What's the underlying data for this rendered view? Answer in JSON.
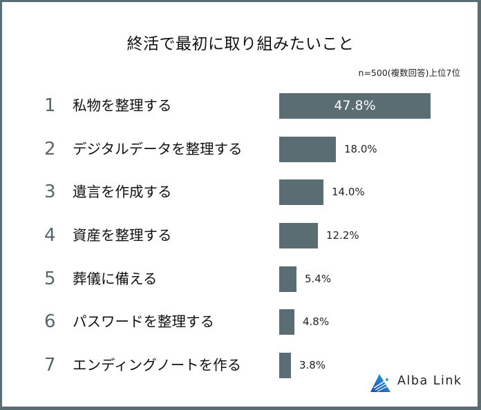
{
  "chart": {
    "title": "終活で最初に取り組みたいこと",
    "note": "n=500(複数回答)上位7位",
    "bar_color": "#5a6d72",
    "frame_color": "#5a6d72",
    "rows": [
      {
        "rank": "1",
        "label": "私物を整理する",
        "value_label": "47.8%"
      },
      {
        "rank": "2",
        "label": "デジタルデータを整理する",
        "value_label": "18.0%"
      },
      {
        "rank": "3",
        "label": "遺言を作成する",
        "value_label": "14.0%"
      },
      {
        "rank": "4",
        "label": "資産を整理する",
        "value_label": "12.2%"
      },
      {
        "rank": "5",
        "label": "葬儀に備える",
        "value_label": "5.4%"
      },
      {
        "rank": "6",
        "label": "パスワードを整理する",
        "value_label": "4.8%"
      },
      {
        "rank": "7",
        "label": "エンディングノートを作る",
        "value_label": "3.8%"
      }
    ]
  },
  "logo": {
    "text": "Alba Link",
    "icon": "alba-link-triangle-logo-icon",
    "color": "#1a6fc4"
  },
  "chart_data": {
    "type": "bar",
    "orientation": "horizontal",
    "title": "終活で最初に取り組みたいこと",
    "subtitle": "n=500(複数回答)上位7位",
    "categories": [
      "私物を整理する",
      "デジタルデータを整理する",
      "遺言を作成する",
      "資産を整理する",
      "葬儀に備える",
      "パスワードを整理する",
      "エンディングノートを作る"
    ],
    "values": [
      47.8,
      18.0,
      14.0,
      12.2,
      5.4,
      4.8,
      3.8
    ],
    "unit": "%",
    "ranks": [
      1,
      2,
      3,
      4,
      5,
      6,
      7
    ],
    "xlabel": "",
    "ylabel": "",
    "grid": false,
    "legend": null,
    "data_labels": true
  }
}
